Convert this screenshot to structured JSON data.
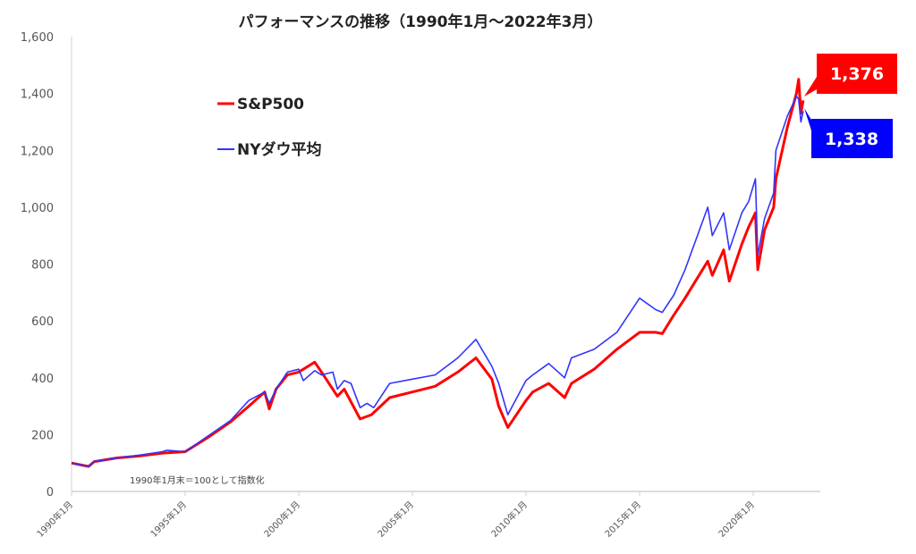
{
  "chart_data": {
    "type": "line",
    "title": "パフォーマンスの推移（1990年1月～2022年3月）",
    "note": "1990年1月末＝100として指数化",
    "xlabel": "",
    "ylabel": "",
    "ylim": [
      0,
      1600
    ],
    "yticks": [
      0,
      200,
      400,
      600,
      800,
      1000,
      1200,
      1400,
      1600
    ],
    "ytick_labels": [
      "0",
      "200",
      "400",
      "600",
      "800",
      "1,000",
      "1,200",
      "1,400",
      "1,600"
    ],
    "xlim": [
      1990.0,
      2022.2
    ],
    "xticks": [
      1990,
      1995,
      2000,
      2005,
      2010,
      2015,
      2020
    ],
    "xtick_labels": [
      "1990年1月",
      "1995年1月",
      "2000年1月",
      "2005年1月",
      "2010年1月",
      "2015年1月",
      "2020年1月"
    ],
    "grid": false,
    "legend_position": "top-left",
    "series": [
      {
        "name": "S&P500",
        "color": "#ff0000",
        "end_label": "1,376",
        "x": [
          1990.0,
          1990.75,
          1991,
          1992,
          1993,
          1994,
          1995,
          1996,
          1997,
          1997.8,
          1998.5,
          1998.7,
          1999,
          1999.5,
          2000,
          2000.7,
          2001,
          2001.7,
          2002,
          2002.7,
          2003.2,
          2004,
          2005,
          2006,
          2007,
          2007.8,
          2008.5,
          2008.8,
          2009.2,
          2010,
          2010.3,
          2011,
          2011.7,
          2012,
          2013,
          2014,
          2015,
          2015.7,
          2016,
          2016.5,
          2017,
          2018,
          2018.2,
          2018.7,
          2018.95,
          2019.5,
          2019.8,
          2020.1,
          2020.2,
          2020.5,
          2020.9,
          2021,
          2021.5,
          2021.9,
          2022.0,
          2022.1,
          2022.2
        ],
        "values": [
          100,
          88,
          105,
          118,
          125,
          135,
          140,
          190,
          245,
          300,
          350,
          290,
          360,
          410,
          420,
          455,
          420,
          335,
          360,
          255,
          270,
          330,
          350,
          370,
          420,
          470,
          395,
          300,
          225,
          320,
          350,
          380,
          330,
          380,
          430,
          500,
          560,
          560,
          555,
          620,
          680,
          810,
          760,
          850,
          740,
          870,
          930,
          980,
          780,
          920,
          1000,
          1100,
          1280,
          1400,
          1450,
          1330,
          1376
        ]
      },
      {
        "name": "NYダウ平均",
        "color": "#3333ff",
        "end_label": "1,338",
        "x": [
          1990.0,
          1990.75,
          1991,
          1992,
          1993,
          1994,
          1994.2,
          1995,
          1996,
          1997,
          1997.8,
          1998.5,
          1998.7,
          1999,
          1999.5,
          2000,
          2000.2,
          2000.7,
          2001,
          2001.5,
          2001.7,
          2002,
          2002.3,
          2002.7,
          2003,
          2003.3,
          2004,
          2005,
          2006,
          2007,
          2007.8,
          2008.5,
          2008.8,
          2009.2,
          2010,
          2010.3,
          2011,
          2011.7,
          2012,
          2013,
          2014,
          2015,
          2015.7,
          2016,
          2016.5,
          2017,
          2018,
          2018.2,
          2018.7,
          2018.95,
          2019.5,
          2019.8,
          2020.1,
          2020.2,
          2020.5,
          2020.9,
          2021,
          2021.5,
          2021.9,
          2022.0,
          2022.1,
          2022.2
        ],
        "values": [
          100,
          88,
          105,
          118,
          128,
          140,
          145,
          140,
          195,
          250,
          320,
          350,
          310,
          360,
          420,
          430,
          390,
          425,
          410,
          420,
          360,
          390,
          380,
          295,
          310,
          295,
          380,
          395,
          410,
          470,
          535,
          440,
          380,
          270,
          390,
          410,
          450,
          400,
          470,
          500,
          560,
          680,
          640,
          630,
          690,
          780,
          1000,
          900,
          980,
          850,
          980,
          1020,
          1100,
          830,
          960,
          1050,
          1200,
          1320,
          1390,
          1380,
          1300,
          1338
        ]
      }
    ]
  }
}
